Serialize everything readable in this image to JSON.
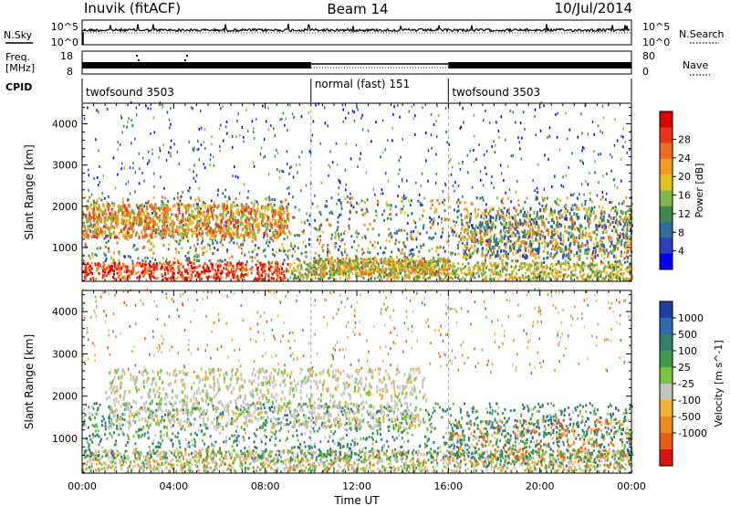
{
  "header": {
    "station": "Inuvik (fitACF)",
    "beam": "Beam 14",
    "date": "10/Jul/2014"
  },
  "left_labels": {
    "nsky": "N.Sky",
    "freq_line1": "Freq.",
    "freq_line2": "[MHz]",
    "cpid": "CPID"
  },
  "right_labels": {
    "nsearch": "N.Search",
    "nave": "Nave"
  },
  "noise_axis": {
    "left_top": "10^5",
    "left_bottom": "10^0",
    "right_top": "10^5",
    "right_bottom": "10^0"
  },
  "freq_axis": {
    "left_top": "18",
    "left_bottom": "8",
    "right_top": "80",
    "right_bottom": "0"
  },
  "cpid_segments": [
    {
      "label": "twofsound 3503",
      "start_hour": 0,
      "end_hour": 10
    },
    {
      "label": "normal (fast) 151",
      "start_hour": 10,
      "end_hour": 16
    },
    {
      "label": "twofsound 3503",
      "start_hour": 16,
      "end_hour": 24
    }
  ],
  "chart_data": [
    {
      "type": "heatmap",
      "ylabel": "Slant Range [km]",
      "xlabel": "Time UT",
      "x_ticks": [
        "00:00",
        "04:00",
        "08:00",
        "12:00",
        "16:00",
        "20:00",
        "00:00"
      ],
      "x_tick_hours": [
        0,
        4,
        8,
        12,
        16,
        20,
        24
      ],
      "xlim": [
        0,
        24
      ],
      "y_ticks": [
        "1000",
        "2000",
        "3000",
        "4000"
      ],
      "y_tick_values": [
        1000,
        2000,
        3000,
        4000
      ],
      "ylim": [
        180,
        4500
      ],
      "colorbar": {
        "label": "Power [dB]",
        "ticks": [
          "4",
          "8",
          "12",
          "16",
          "20",
          "24",
          "28"
        ],
        "colors": [
          "#0000ff",
          "#2a3fb8",
          "#2f6d9c",
          "#3e8a4e",
          "#7fb84a",
          "#e8c21c",
          "#f59a22",
          "#f26a1e",
          "#e8341a",
          "#e00000"
        ]
      }
    },
    {
      "type": "heatmap",
      "ylabel": "Slant Range [km]",
      "xlabel": "Time UT",
      "x_ticks": [
        "00:00",
        "04:00",
        "08:00",
        "12:00",
        "16:00",
        "20:00",
        "00:00"
      ],
      "x_tick_hours": [
        0,
        4,
        8,
        12,
        16,
        20,
        24
      ],
      "xlim": [
        0,
        24
      ],
      "y_ticks": [
        "1000",
        "2000",
        "3000",
        "4000"
      ],
      "y_tick_values": [
        1000,
        2000,
        3000,
        4000
      ],
      "ylim": [
        180,
        4500
      ],
      "colorbar": {
        "label": "Velocity [m s^-1]",
        "ticks": [
          "1000",
          "500",
          "100",
          "25",
          "-25",
          "-100",
          "-500",
          "-1000"
        ],
        "colors": [
          "#1d3fa8",
          "#2f6ab0",
          "#347f6a",
          "#3f9a4a",
          "#7cc43a",
          "#c4c4be",
          "#f2b23a",
          "#f08a1e",
          "#ec5a16",
          "#e01010"
        ]
      }
    }
  ],
  "title_labels": {
    "time_ut": "Time UT"
  }
}
